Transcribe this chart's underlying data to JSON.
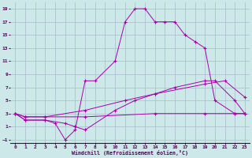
{
  "xlabel": "Windchill (Refroidissement éolien,°C)",
  "bg_color": "#cce8e8",
  "grid_color": "#aabbcc",
  "line_color": "#aa00aa",
  "xlim": [
    -0.5,
    23.5
  ],
  "ylim": [
    -1.5,
    20
  ],
  "yticks": [
    -1,
    1,
    3,
    5,
    7,
    9,
    11,
    13,
    15,
    17,
    19
  ],
  "xticks": [
    0,
    1,
    2,
    3,
    4,
    5,
    6,
    7,
    8,
    9,
    10,
    11,
    12,
    13,
    14,
    15,
    16,
    17,
    18,
    19,
    20,
    21,
    22,
    23
  ],
  "line1_x": [
    0,
    1,
    3,
    4,
    5,
    6,
    7,
    8,
    10,
    11,
    12,
    13,
    14,
    15,
    16,
    17,
    18,
    19,
    20,
    22,
    23
  ],
  "line1_y": [
    3,
    2,
    2,
    1.5,
    -1,
    0.5,
    8,
    8,
    11,
    17,
    19,
    19,
    17,
    17,
    17,
    15,
    14,
    13,
    5,
    3,
    3
  ],
  "line2_x": [
    0,
    1,
    3,
    5,
    6,
    7,
    10,
    12,
    14,
    16,
    19,
    20,
    22,
    23
  ],
  "line2_y": [
    3,
    2,
    2,
    1.5,
    1,
    0.5,
    3.5,
    5,
    6,
    7,
    8,
    8,
    5,
    3
  ],
  "line3_x": [
    0,
    1,
    3,
    7,
    11,
    14,
    19,
    21,
    23
  ],
  "line3_y": [
    3,
    2.5,
    2.5,
    3.5,
    5,
    6,
    7.5,
    8,
    5.5
  ],
  "line4_x": [
    0,
    1,
    3,
    7,
    14,
    19,
    22,
    23
  ],
  "line4_y": [
    3,
    2.5,
    2.5,
    2.5,
    3,
    3,
    3,
    3
  ]
}
